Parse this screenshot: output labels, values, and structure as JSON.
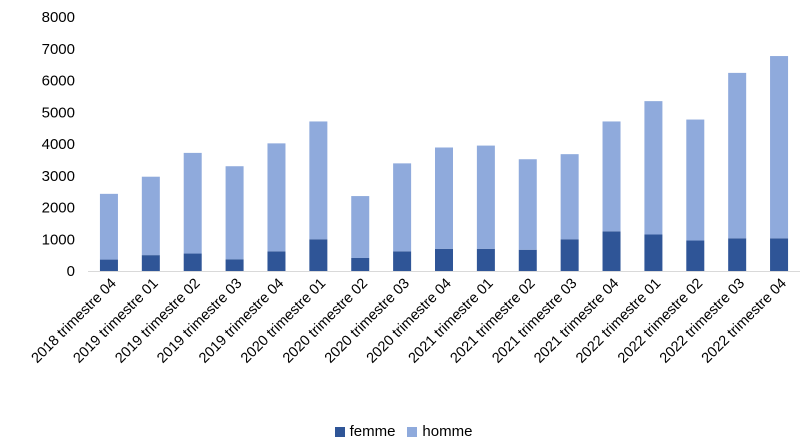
{
  "chart_data": {
    "type": "bar",
    "stacked": true,
    "categories": [
      "2018 trimestre 04",
      "2019 trimestre 01",
      "2019 trimestre 02",
      "2019 trimestre 03",
      "2019 trimestre 04",
      "2020 trimestre 01",
      "2020 trimestre 02",
      "2020 trimestre 03",
      "2020 trimestre 04",
      "2021 trimestre 01",
      "2021 trimestre 02",
      "2021 trimestre 03",
      "2021 trimestre 04",
      "2022 trimestre 01",
      "2022 trimestre 02",
      "2022 trimestre 03",
      "2022 trimestre 04"
    ],
    "series": [
      {
        "name": "femme",
        "color": "#2f5597",
        "values": [
          360,
          500,
          550,
          370,
          620,
          1000,
          410,
          620,
          700,
          700,
          670,
          1000,
          1250,
          1150,
          960,
          1030,
          1030
        ]
      },
      {
        "name": "homme",
        "color": "#8faadc",
        "values": [
          2070,
          2470,
          3170,
          2930,
          3400,
          3710,
          1950,
          2770,
          3190,
          3250,
          2850,
          2680,
          3460,
          4200,
          3810,
          5210,
          5740
        ]
      }
    ],
    "ylim": [
      0,
      8000
    ],
    "yticks": [
      0,
      1000,
      2000,
      3000,
      4000,
      5000,
      6000,
      7000,
      8000
    ],
    "grid": false,
    "legend_position": "bottom"
  }
}
